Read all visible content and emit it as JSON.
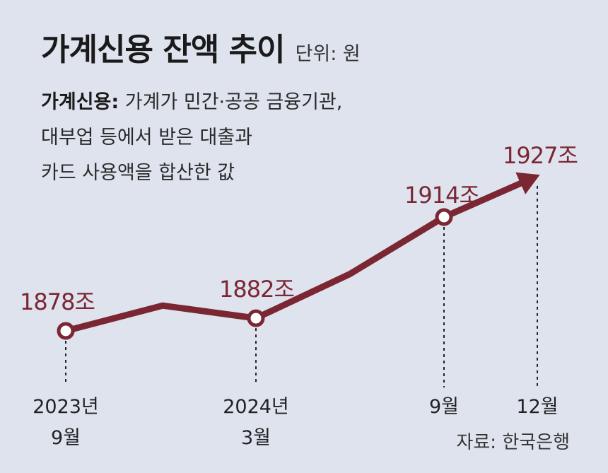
{
  "header": {
    "title": "가계신용 잔액 추이",
    "unit": "단위: 원"
  },
  "description": {
    "term": "가계신용:",
    "lines": [
      "가계가 민간·공공 금융기관,",
      "대부업 등에서 받은 대출과",
      "카드 사용액을 합산한 값"
    ]
  },
  "source": "자료: 한국은행",
  "colors": {
    "line": "#7a2733",
    "background": "#dfe3ee"
  },
  "chart_data": {
    "type": "line",
    "title": "가계신용 잔액 추이",
    "unit": "원",
    "x": [
      "2023-09",
      "2023-12",
      "2024-03",
      "2024-06",
      "2024-09",
      "2024-12"
    ],
    "values": [
      1878,
      1886,
      1882,
      1896,
      1914,
      1927
    ],
    "labeled_points": [
      {
        "x": "2023-09",
        "value_label": "1878조",
        "tick_label": [
          "2023년",
          "9월"
        ]
      },
      {
        "x": "2024-03",
        "value_label": "1882조",
        "tick_label": [
          "2024년",
          "3월"
        ]
      },
      {
        "x": "2024-09",
        "value_label": "1914조",
        "tick_label": [
          "9월"
        ]
      },
      {
        "x": "2024-12",
        "value_label": "1927조",
        "tick_label": [
          "12월"
        ]
      }
    ],
    "grid": false,
    "legend": "none",
    "end_marker": "arrow"
  }
}
